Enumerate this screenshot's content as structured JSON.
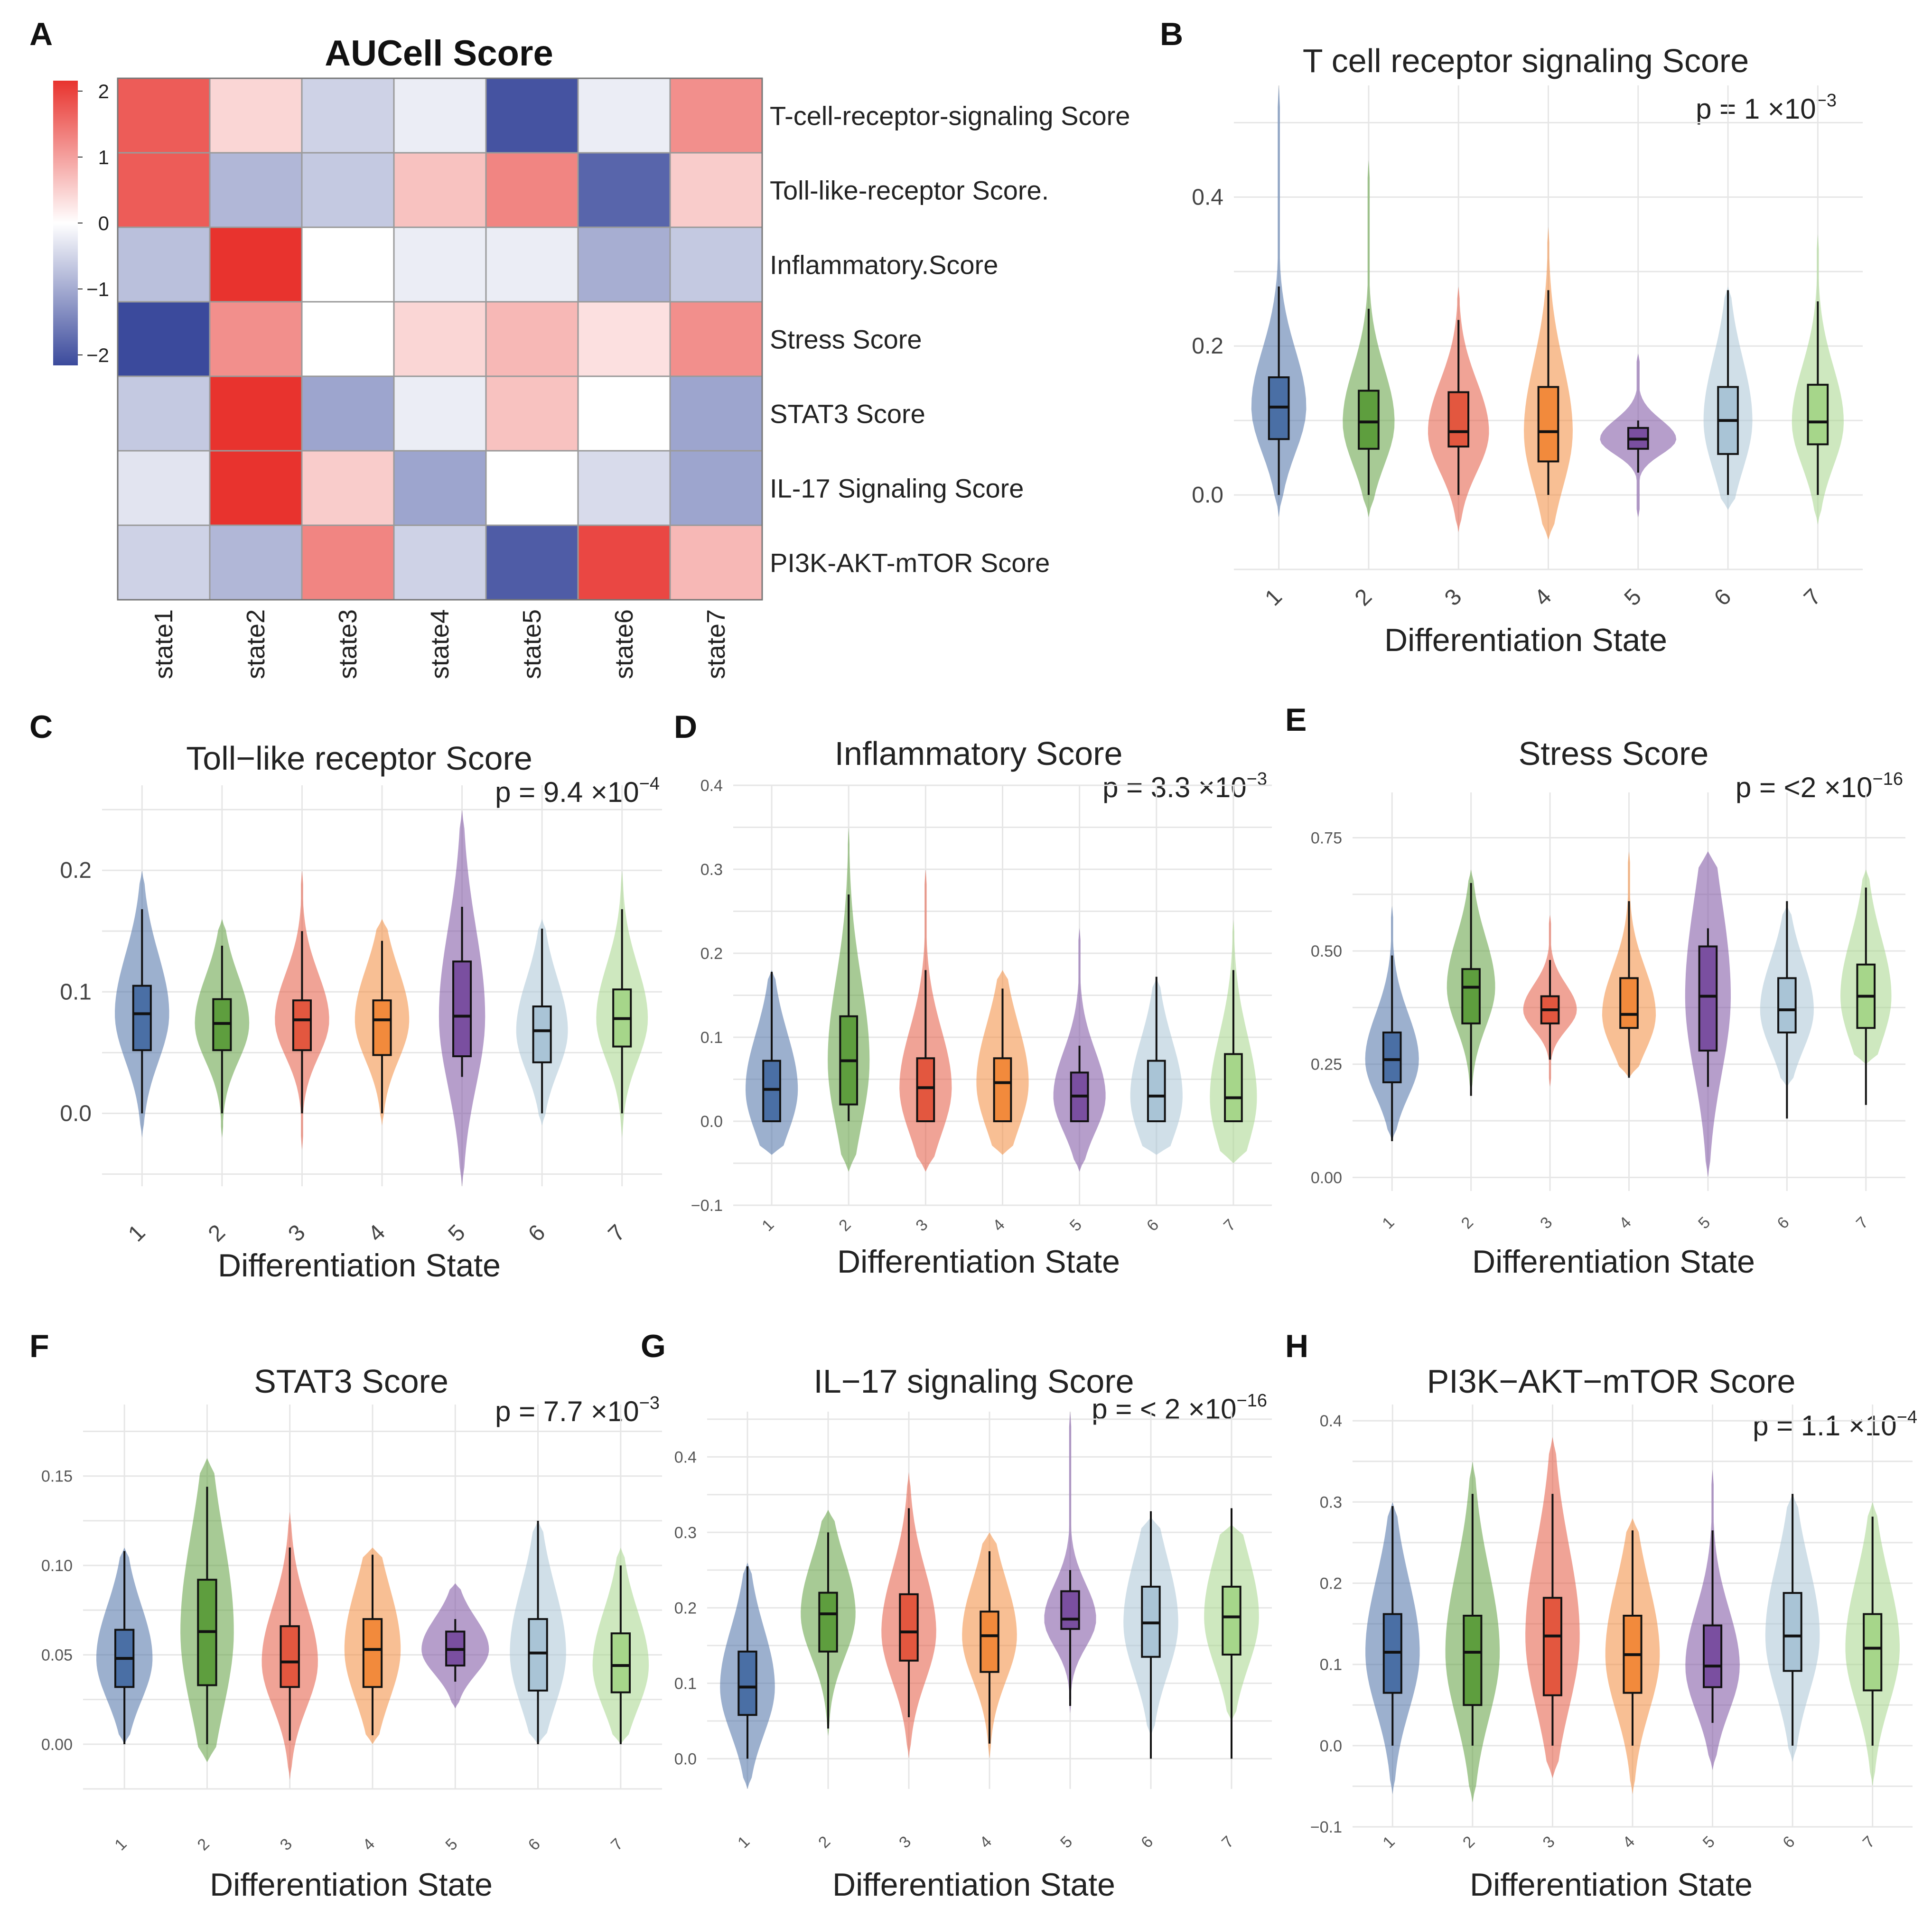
{
  "colors": {
    "state1": "#4A6FA5",
    "state2": "#5E9E3E",
    "state3": "#E3573F",
    "state4": "#F28A3C",
    "state5": "#7A4FA0",
    "state6": "#A9C4D6",
    "state7": "#A6D68A",
    "heat_low": "#3B4A9C",
    "heat_mid": "#FFFFFF",
    "heat_high": "#E8332E",
    "grid": "#E6E6E6"
  },
  "chart_data": [
    {
      "panel": "A",
      "type": "heatmap",
      "title": "AUCell Score",
      "rows": [
        "T-cell-receptor-signaling Score",
        "Toll-like-receptor Score.",
        "Inflammatory.Score",
        "Stress Score",
        "STAT3 Score",
        "IL-17 Signaling Score",
        "PI3K-AKT-mTOR Score"
      ],
      "columns": [
        "state1",
        "state2",
        "state3",
        "state4",
        "state5",
        "state6",
        "state7"
      ],
      "values": [
        [
          1.6,
          0.4,
          -0.5,
          -0.2,
          -1.9,
          -0.2,
          1.1
        ],
        [
          1.6,
          -0.8,
          -0.6,
          0.6,
          1.2,
          -1.7,
          0.5
        ],
        [
          -0.7,
          2.0,
          0.0,
          -0.2,
          -0.2,
          -0.9,
          -0.6
        ],
        [
          -2.0,
          1.1,
          0.0,
          0.4,
          0.7,
          0.3,
          1.1
        ],
        [
          -0.6,
          2.0,
          -1.0,
          -0.2,
          0.6,
          0.0,
          -1.0
        ],
        [
          -0.3,
          2.0,
          0.5,
          -1.0,
          0.0,
          -0.4,
          -1.0
        ],
        [
          -0.5,
          -0.8,
          1.2,
          -0.5,
          -1.8,
          1.8,
          0.7
        ]
      ],
      "legend_ticks": [
        "2",
        "1",
        "0",
        "−1",
        "−2"
      ],
      "legend_range": [
        -2,
        2
      ]
    },
    {
      "panel": "B",
      "type": "violin",
      "title": "T cell receptor signaling Score",
      "pvalue": {
        "text": "p = 1 ×10",
        "exp": "−3"
      },
      "xlabel": "Differentiation State",
      "categories": [
        "1",
        "2",
        "3",
        "4",
        "5",
        "6",
        "7"
      ],
      "ylim": [
        -0.1,
        0.55
      ],
      "yticks": [
        0.0,
        0.2,
        0.4
      ],
      "ytick_labels": [
        "0.0",
        "0.2",
        "0.4"
      ],
      "series": [
        {
          "min": 0.0,
          "q1": 0.075,
          "median": 0.118,
          "q3": 0.158,
          "max": 0.28,
          "lo": -0.03,
          "hi": 0.55,
          "width": 0.9
        },
        {
          "min": 0.0,
          "q1": 0.062,
          "median": 0.098,
          "q3": 0.14,
          "max": 0.25,
          "lo": -0.03,
          "hi": 0.45,
          "width": 0.85
        },
        {
          "min": 0.0,
          "q1": 0.065,
          "median": 0.085,
          "q3": 0.138,
          "max": 0.235,
          "lo": -0.05,
          "hi": 0.28,
          "width": 1.0
        },
        {
          "min": 0.0,
          "q1": 0.045,
          "median": 0.085,
          "q3": 0.145,
          "max": 0.275,
          "lo": -0.06,
          "hi": 0.36,
          "width": 0.8
        },
        {
          "min": 0.03,
          "q1": 0.062,
          "median": 0.075,
          "q3": 0.09,
          "max": 0.1,
          "lo": -0.03,
          "hi": 0.19,
          "width": 1.5
        },
        {
          "min": 0.0,
          "q1": 0.055,
          "median": 0.1,
          "q3": 0.145,
          "max": 0.275,
          "lo": -0.02,
          "hi": 0.28,
          "width": 0.8
        },
        {
          "min": 0.0,
          "q1": 0.068,
          "median": 0.098,
          "q3": 0.148,
          "max": 0.26,
          "lo": -0.04,
          "hi": 0.35,
          "width": 0.85
        }
      ]
    },
    {
      "panel": "C",
      "type": "violin",
      "title": "Toll−like receptor Score",
      "pvalue": {
        "text": "p = 9.4 ×10",
        "exp": "−4"
      },
      "xlabel": "Differentiation State",
      "categories": [
        "1",
        "2",
        "3",
        "4",
        "5",
        "6",
        "7"
      ],
      "ylim": [
        -0.06,
        0.27
      ],
      "yticks": [
        0.0,
        0.1,
        0.2
      ],
      "ytick_labels": [
        "0.0",
        "0.1",
        "0.2"
      ],
      "series": [
        {
          "min": 0.0,
          "q1": 0.052,
          "median": 0.082,
          "q3": 0.105,
          "max": 0.168,
          "lo": -0.02,
          "hi": 0.2,
          "width": 1.0
        },
        {
          "min": 0.0,
          "q1": 0.052,
          "median": 0.074,
          "q3": 0.094,
          "max": 0.138,
          "lo": -0.02,
          "hi": 0.16,
          "width": 1.0
        },
        {
          "min": 0.0,
          "q1": 0.052,
          "median": 0.077,
          "q3": 0.093,
          "max": 0.15,
          "lo": -0.03,
          "hi": 0.2,
          "width": 1.0
        },
        {
          "min": 0.0,
          "q1": 0.048,
          "median": 0.077,
          "q3": 0.093,
          "max": 0.142,
          "lo": -0.01,
          "hi": 0.16,
          "width": 1.0
        },
        {
          "min": 0.03,
          "q1": 0.047,
          "median": 0.08,
          "q3": 0.125,
          "max": 0.17,
          "lo": -0.06,
          "hi": 0.25,
          "width": 0.85
        },
        {
          "min": 0.0,
          "q1": 0.042,
          "median": 0.068,
          "q3": 0.088,
          "max": 0.152,
          "lo": -0.01,
          "hi": 0.16,
          "width": 0.95
        },
        {
          "min": 0.0,
          "q1": 0.055,
          "median": 0.078,
          "q3": 0.102,
          "max": 0.168,
          "lo": -0.02,
          "hi": 0.2,
          "width": 0.95
        }
      ]
    },
    {
      "panel": "D",
      "type": "violin",
      "title": "Inflammatory Score",
      "pvalue": {
        "text": "p = 3.3 ×10",
        "exp": "−3"
      },
      "xlabel": "Differentiation State",
      "categories": [
        "1",
        "2",
        "3",
        "4",
        "5",
        "6",
        "7"
      ],
      "ylim": [
        -0.1,
        0.4
      ],
      "yticks": [
        -0.1,
        0.0,
        0.1,
        0.2,
        0.3,
        0.4
      ],
      "ytick_labels": [
        "−0.1",
        "0.0",
        "0.1",
        "0.2",
        "0.3",
        "0.4"
      ],
      "series": [
        {
          "min": 0.0,
          "q1": 0.0,
          "median": 0.038,
          "q3": 0.072,
          "max": 0.178,
          "lo": -0.04,
          "hi": 0.18,
          "width": 1.0
        },
        {
          "min": 0.0,
          "q1": 0.02,
          "median": 0.072,
          "q3": 0.125,
          "max": 0.27,
          "lo": -0.06,
          "hi": 0.35,
          "width": 0.8
        },
        {
          "min": 0.0,
          "q1": 0.0,
          "median": 0.04,
          "q3": 0.075,
          "max": 0.18,
          "lo": -0.06,
          "hi": 0.3,
          "width": 1.0
        },
        {
          "min": 0.0,
          "q1": 0.0,
          "median": 0.046,
          "q3": 0.075,
          "max": 0.158,
          "lo": -0.04,
          "hi": 0.18,
          "width": 1.0
        },
        {
          "min": 0.0,
          "q1": 0.0,
          "median": 0.03,
          "q3": 0.058,
          "max": 0.09,
          "lo": -0.06,
          "hi": 0.23,
          "width": 1.0
        },
        {
          "min": 0.0,
          "q1": 0.0,
          "median": 0.03,
          "q3": 0.072,
          "max": 0.172,
          "lo": -0.04,
          "hi": 0.17,
          "width": 1.0
        },
        {
          "min": 0.0,
          "q1": 0.0,
          "median": 0.028,
          "q3": 0.08,
          "max": 0.18,
          "lo": -0.05,
          "hi": 0.24,
          "width": 0.9
        }
      ]
    },
    {
      "panel": "E",
      "type": "violin",
      "title": "Stress Score",
      "pvalue": {
        "text": "p = <2 ×10",
        "exp": "−16"
      },
      "xlabel": "Differentiation State",
      "categories": [
        "1",
        "2",
        "3",
        "4",
        "5",
        "6",
        "7"
      ],
      "ylim": [
        -0.03,
        0.85
      ],
      "yticks": [
        0.0,
        0.25,
        0.5,
        0.75
      ],
      "ytick_labels": [
        "0.00",
        "0.25",
        "0.50",
        "0.75"
      ],
      "series": [
        {
          "min": 0.08,
          "q1": 0.21,
          "median": 0.26,
          "q3": 0.32,
          "max": 0.49,
          "lo": 0.08,
          "hi": 0.6,
          "width": 1.0
        },
        {
          "min": 0.18,
          "q1": 0.34,
          "median": 0.42,
          "q3": 0.46,
          "max": 0.65,
          "lo": 0.18,
          "hi": 0.68,
          "width": 0.9
        },
        {
          "min": 0.26,
          "q1": 0.34,
          "median": 0.37,
          "q3": 0.4,
          "max": 0.48,
          "lo": 0.2,
          "hi": 0.58,
          "width": 1.0
        },
        {
          "min": 0.22,
          "q1": 0.33,
          "median": 0.36,
          "q3": 0.44,
          "max": 0.61,
          "lo": 0.22,
          "hi": 0.72,
          "width": 1.0
        },
        {
          "min": 0.2,
          "q1": 0.28,
          "median": 0.4,
          "q3": 0.51,
          "max": 0.55,
          "lo": 0.0,
          "hi": 0.72,
          "width": 0.85
        },
        {
          "min": 0.13,
          "q1": 0.32,
          "median": 0.37,
          "q3": 0.44,
          "max": 0.61,
          "lo": 0.2,
          "hi": 0.6,
          "width": 1.0
        },
        {
          "min": 0.16,
          "q1": 0.33,
          "median": 0.4,
          "q3": 0.47,
          "max": 0.64,
          "lo": 0.25,
          "hi": 0.68,
          "width": 0.95
        }
      ]
    },
    {
      "panel": "F",
      "type": "violin",
      "title": "STAT3 Score",
      "pvalue": {
        "text": "p = 7.7 ×10",
        "exp": "−3"
      },
      "xlabel": "Differentiation State",
      "categories": [
        "1",
        "2",
        "3",
        "4",
        "5",
        "6",
        "7"
      ],
      "ylim": [
        -0.025,
        0.19
      ],
      "yticks": [
        0.0,
        0.05,
        0.1,
        0.15
      ],
      "ytick_labels": [
        "0.00",
        "0.05",
        "0.10",
        "0.15"
      ],
      "series": [
        {
          "min": 0.0,
          "q1": 0.032,
          "median": 0.048,
          "q3": 0.064,
          "max": 0.108,
          "lo": 0.0,
          "hi": 0.11,
          "width": 1.0
        },
        {
          "min": 0.0,
          "q1": 0.033,
          "median": 0.063,
          "q3": 0.092,
          "max": 0.144,
          "lo": -0.01,
          "hi": 0.16,
          "width": 0.95
        },
        {
          "min": 0.002,
          "q1": 0.032,
          "median": 0.046,
          "q3": 0.066,
          "max": 0.11,
          "lo": -0.02,
          "hi": 0.13,
          "width": 1.0
        },
        {
          "min": 0.005,
          "q1": 0.032,
          "median": 0.053,
          "q3": 0.07,
          "max": 0.106,
          "lo": 0.0,
          "hi": 0.11,
          "width": 1.0
        },
        {
          "min": 0.035,
          "q1": 0.044,
          "median": 0.053,
          "q3": 0.063,
          "max": 0.07,
          "lo": 0.02,
          "hi": 0.09,
          "width": 1.2
        },
        {
          "min": 0.0,
          "q1": 0.03,
          "median": 0.051,
          "q3": 0.07,
          "max": 0.125,
          "lo": 0.0,
          "hi": 0.125,
          "width": 1.0
        },
        {
          "min": 0.0,
          "q1": 0.029,
          "median": 0.044,
          "q3": 0.062,
          "max": 0.1,
          "lo": 0.0,
          "hi": 0.11,
          "width": 1.0
        }
      ]
    },
    {
      "panel": "G",
      "type": "violin",
      "title": "IL−17 signaling Score",
      "pvalue": {
        "text": "p = < 2 ×10",
        "exp": "−16"
      },
      "xlabel": "Differentiation State",
      "categories": [
        "1",
        "2",
        "3",
        "4",
        "5",
        "6",
        "7"
      ],
      "ylim": [
        -0.04,
        0.46
      ],
      "yticks": [
        0.0,
        0.1,
        0.2,
        0.3,
        0.4
      ],
      "ytick_labels": [
        "0.0",
        "0.1",
        "0.2",
        "0.3",
        "0.4"
      ],
      "series": [
        {
          "min": 0.0,
          "q1": 0.058,
          "median": 0.095,
          "q3": 0.142,
          "max": 0.255,
          "lo": -0.04,
          "hi": 0.26,
          "width": 1.0
        },
        {
          "min": 0.04,
          "q1": 0.142,
          "median": 0.192,
          "q3": 0.22,
          "max": 0.3,
          "lo": 0.03,
          "hi": 0.33,
          "width": 1.0
        },
        {
          "min": 0.055,
          "q1": 0.13,
          "median": 0.168,
          "q3": 0.218,
          "max": 0.332,
          "lo": 0.0,
          "hi": 0.38,
          "width": 1.0
        },
        {
          "min": 0.02,
          "q1": 0.115,
          "median": 0.163,
          "q3": 0.195,
          "max": 0.275,
          "lo": 0.0,
          "hi": 0.3,
          "width": 1.0
        },
        {
          "min": 0.07,
          "q1": 0.172,
          "median": 0.185,
          "q3": 0.222,
          "max": 0.25,
          "lo": 0.06,
          "hi": 0.46,
          "width": 0.95
        },
        {
          "min": 0.0,
          "q1": 0.135,
          "median": 0.18,
          "q3": 0.228,
          "max": 0.328,
          "lo": 0.03,
          "hi": 0.32,
          "width": 1.0
        },
        {
          "min": 0.0,
          "q1": 0.138,
          "median": 0.188,
          "q3": 0.228,
          "max": 0.332,
          "lo": 0.05,
          "hi": 0.31,
          "width": 1.0
        }
      ]
    },
    {
      "panel": "H",
      "type": "violin",
      "title": "PI3K−AKT−mTOR Score",
      "pvalue": {
        "text": "p = 1.1 ×10",
        "exp": "−4"
      },
      "xlabel": "Differentiation State",
      "categories": [
        "1",
        "2",
        "3",
        "4",
        "5",
        "6",
        "7"
      ],
      "ylim": [
        -0.1,
        0.42
      ],
      "yticks": [
        -0.1,
        0.0,
        0.1,
        0.2,
        0.3,
        0.4
      ],
      "ytick_labels": [
        "−0.1",
        "0.0",
        "0.1",
        "0.2",
        "0.3",
        "0.4"
      ],
      "series": [
        {
          "min": 0.0,
          "q1": 0.065,
          "median": 0.115,
          "q3": 0.162,
          "max": 0.295,
          "lo": -0.06,
          "hi": 0.3,
          "width": 1.0
        },
        {
          "min": 0.0,
          "q1": 0.05,
          "median": 0.115,
          "q3": 0.16,
          "max": 0.31,
          "lo": -0.07,
          "hi": 0.35,
          "width": 1.0
        },
        {
          "min": 0.0,
          "q1": 0.062,
          "median": 0.135,
          "q3": 0.182,
          "max": 0.31,
          "lo": -0.04,
          "hi": 0.38,
          "width": 1.0
        },
        {
          "min": 0.0,
          "q1": 0.065,
          "median": 0.112,
          "q3": 0.16,
          "max": 0.265,
          "lo": -0.06,
          "hi": 0.28,
          "width": 1.0
        },
        {
          "min": 0.028,
          "q1": 0.072,
          "median": 0.098,
          "q3": 0.148,
          "max": 0.265,
          "lo": -0.03,
          "hi": 0.34,
          "width": 1.0
        },
        {
          "min": 0.0,
          "q1": 0.092,
          "median": 0.135,
          "q3": 0.188,
          "max": 0.31,
          "lo": -0.02,
          "hi": 0.31,
          "width": 1.0
        },
        {
          "min": 0.0,
          "q1": 0.068,
          "median": 0.12,
          "q3": 0.162,
          "max": 0.282,
          "lo": -0.05,
          "hi": 0.3,
          "width": 1.0
        }
      ]
    }
  ]
}
